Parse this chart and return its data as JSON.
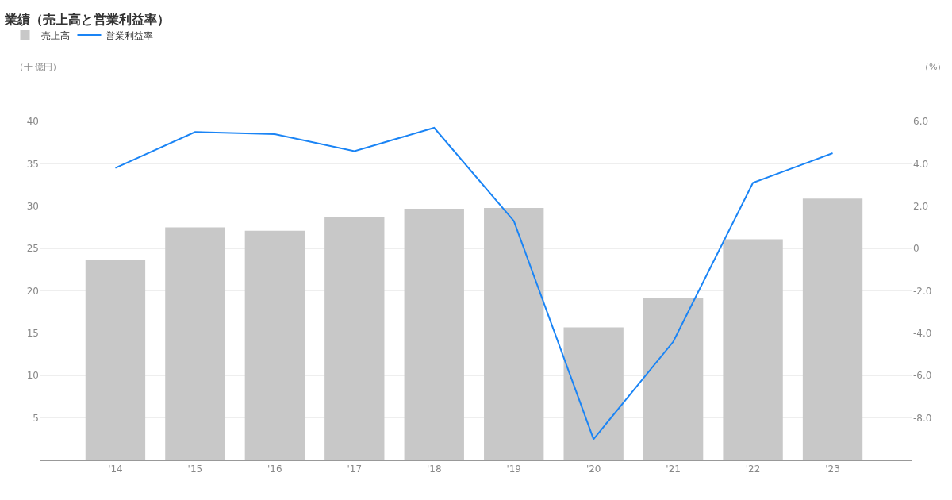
{
  "chart_data": {
    "type": "bar",
    "title": "業績（売上高と営業利益率）",
    "annotations": [
      "（十 億円）",
      "（%）"
    ],
    "categories": [
      "'14",
      "'15",
      "'16",
      "'17",
      "'18",
      "'19",
      "'20",
      "'21",
      "'22",
      "'23"
    ],
    "series": [
      {
        "name": "売上高",
        "color": "#c8c8c8",
        "values": [
          23.6,
          27.5,
          27.1,
          28.7,
          29.7,
          29.8,
          15.7,
          19.1,
          26.1,
          30.9
        ]
      },
      {
        "name": "営業利益率",
        "type": "line",
        "axis": "y2",
        "color": "#1a84f5",
        "values": [
          3.8,
          5.5,
          5.4,
          4.6,
          5.7,
          1.3,
          -9.0,
          -4.4,
          3.1,
          4.5
        ]
      }
    ],
    "ylim": [
      0,
      40
    ],
    "yticks": [
      5,
      10,
      15,
      20,
      25,
      30,
      35,
      40
    ],
    "y2lim": [
      -10,
      6
    ],
    "y2ticks": [
      {
        "value": -8,
        "label": "-8.0"
      },
      {
        "value": -6,
        "label": "-6.0"
      },
      {
        "value": -4,
        "label": "-4.0"
      },
      {
        "value": -2,
        "label": "-2.0"
      },
      0,
      {
        "value": 2,
        "label": "2.0"
      },
      {
        "value": 4,
        "label": "4.0"
      },
      {
        "value": 6,
        "label": "6.0"
      }
    ],
    "grid": "y",
    "legend": "top left",
    "marker": "none",
    "line_style": "solid"
  }
}
